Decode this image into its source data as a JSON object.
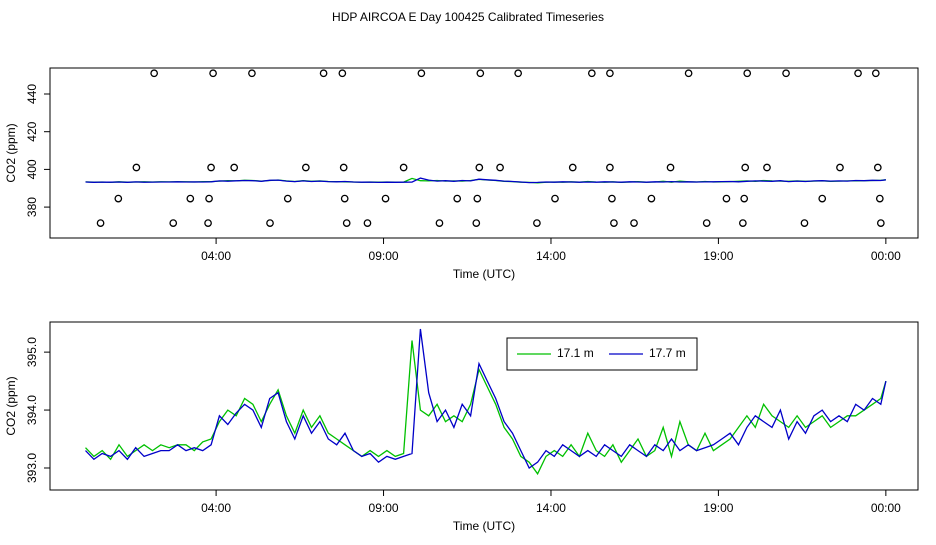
{
  "chart_data": [
    {
      "type": "scatter",
      "title": "HDP AIRCOA E  Day 100425  Calibrated Timeseries",
      "xlabel": "Time (UTC)",
      "ylabel": "CO2 (ppm)",
      "xlim": [
        -0.96,
        24.96
      ],
      "xticks": [
        {
          "value": 4,
          "label": "04:00"
        },
        {
          "value": 9,
          "label": "09:00"
        },
        {
          "value": 14,
          "label": "14:00"
        },
        {
          "value": 19,
          "label": "19:00"
        },
        {
          "value": 24,
          "label": "00:00"
        }
      ],
      "ylim": [
        363.6,
        453.8
      ],
      "yticks": [
        380,
        400,
        420,
        440
      ],
      "color": "#000000",
      "x": [
        2.15,
        3.91,
        5.07,
        7.21,
        7.77,
        10.13,
        11.89,
        13.02,
        15.22,
        15.76,
        18.11,
        19.86,
        21.02,
        23.17,
        23.7,
        1.62,
        3.85,
        4.54,
        6.68,
        7.81,
        9.6,
        11.86,
        12.48,
        14.65,
        15.76,
        17.57,
        19.8,
        20.45,
        22.63,
        23.76,
        1.08,
        3.23,
        3.79,
        6.14,
        7.84,
        9.06,
        11.2,
        11.8,
        14.12,
        15.82,
        17.0,
        19.24,
        19.77,
        22.1,
        23.82,
        0.55,
        2.72,
        3.76,
        5.61,
        7.9,
        8.52,
        10.67,
        11.77,
        13.58,
        15.88,
        16.48,
        18.65,
        19.73,
        21.57,
        23.85
      ],
      "values": [
        451,
        451,
        451,
        451,
        451,
        451,
        451,
        451,
        451,
        451,
        451,
        451,
        451,
        451,
        451,
        401,
        401,
        401,
        401,
        401,
        401,
        401,
        401,
        401,
        401,
        401,
        401,
        401,
        401,
        401,
        384.5,
        384.5,
        384.5,
        384.5,
        384.5,
        384.5,
        384.5,
        384.5,
        384.5,
        384.5,
        384.5,
        384.5,
        384.5,
        384.5,
        384.5,
        371.5,
        371.5,
        371.5,
        371.5,
        371.5,
        371.5,
        371.5,
        371.5,
        371.5,
        371.5,
        371.5,
        371.5,
        371.5,
        371.5,
        371.5
      ]
    },
    {
      "type": "line",
      "xlabel": "Time (UTC)",
      "ylabel": "CO2 (ppm)",
      "xlim": [
        -0.96,
        24.96
      ],
      "xticks": [
        {
          "value": 4,
          "label": "04:00"
        },
        {
          "value": 9,
          "label": "09:00"
        },
        {
          "value": 14,
          "label": "14:00"
        },
        {
          "value": 19,
          "label": "19:00"
        },
        {
          "value": 24,
          "label": "00:00"
        }
      ],
      "ylim": [
        392.62,
        395.52
      ],
      "yticks": [
        {
          "value": 393,
          "label": "393.0"
        },
        {
          "value": 394,
          "label": "394.0"
        },
        {
          "value": 395,
          "label": "395.0"
        }
      ],
      "legend": "top",
      "x": [
        0.1,
        0.35,
        0.6,
        0.85,
        1.1,
        1.35,
        1.6,
        1.85,
        2.1,
        2.35,
        2.6,
        2.85,
        3.1,
        3.35,
        3.6,
        3.85,
        4.1,
        4.35,
        4.6,
        4.85,
        5.1,
        5.35,
        5.6,
        5.85,
        6.1,
        6.35,
        6.6,
        6.85,
        7.1,
        7.35,
        7.6,
        7.85,
        8.1,
        8.35,
        8.6,
        8.85,
        9.1,
        9.35,
        9.6,
        9.85,
        10.1,
        10.35,
        10.6,
        10.85,
        11.1,
        11.35,
        11.6,
        11.85,
        12.1,
        12.35,
        12.6,
        12.85,
        13.1,
        13.35,
        13.6,
        13.85,
        14.1,
        14.35,
        14.6,
        14.85,
        15.1,
        15.35,
        15.6,
        15.85,
        16.1,
        16.35,
        16.6,
        16.85,
        17.1,
        17.35,
        17.6,
        17.85,
        18.1,
        18.35,
        18.6,
        18.85,
        19.1,
        19.35,
        19.6,
        19.85,
        20.1,
        20.35,
        20.6,
        20.85,
        21.1,
        21.35,
        21.6,
        21.85,
        22.1,
        22.35,
        22.6,
        22.85,
        23.1,
        23.35,
        23.6,
        23.85,
        24.0
      ],
      "series": [
        {
          "name": "17.1 m",
          "color": "#00c000",
          "values": [
            393.35,
            393.2,
            393.3,
            393.15,
            393.4,
            393.2,
            393.3,
            393.4,
            393.3,
            393.4,
            393.35,
            393.4,
            393.4,
            393.3,
            393.45,
            393.5,
            393.8,
            394.0,
            393.9,
            394.2,
            394.1,
            393.8,
            394.1,
            394.35,
            393.9,
            393.6,
            394.0,
            393.7,
            393.9,
            393.6,
            393.5,
            393.4,
            393.3,
            393.2,
            393.3,
            393.2,
            393.3,
            393.2,
            393.25,
            395.2,
            394.0,
            393.9,
            394.1,
            393.8,
            393.9,
            393.8,
            394.1,
            394.7,
            394.4,
            394.1,
            393.7,
            393.5,
            393.2,
            393.1,
            392.9,
            393.2,
            393.3,
            393.2,
            393.4,
            393.2,
            393.6,
            393.3,
            393.2,
            393.4,
            393.1,
            393.3,
            393.5,
            393.2,
            393.3,
            393.7,
            393.2,
            393.8,
            393.4,
            393.3,
            393.6,
            393.3,
            393.4,
            393.5,
            393.7,
            393.9,
            393.7,
            394.1,
            393.9,
            393.8,
            393.7,
            393.9,
            393.7,
            393.8,
            393.9,
            393.7,
            393.8,
            393.9,
            393.9,
            394.0,
            394.1,
            394.2,
            394.5
          ]
        },
        {
          "name": "17.7 m",
          "color": "#0000c8",
          "values": [
            393.3,
            393.15,
            393.25,
            393.2,
            393.3,
            393.15,
            393.35,
            393.2,
            393.25,
            393.3,
            393.3,
            393.4,
            393.3,
            393.35,
            393.3,
            393.4,
            393.9,
            393.75,
            393.95,
            394.1,
            394.0,
            393.7,
            394.2,
            394.3,
            393.8,
            393.5,
            393.9,
            393.6,
            393.8,
            393.5,
            393.4,
            393.6,
            393.3,
            393.2,
            393.25,
            393.1,
            393.2,
            393.15,
            393.2,
            393.25,
            395.4,
            394.3,
            393.8,
            394.0,
            393.7,
            394.1,
            393.9,
            394.8,
            394.5,
            394.2,
            393.8,
            393.6,
            393.3,
            393.0,
            393.1,
            393.3,
            393.2,
            393.4,
            393.3,
            393.2,
            393.3,
            393.2,
            393.4,
            393.3,
            393.2,
            393.4,
            393.3,
            393.2,
            393.4,
            393.3,
            393.5,
            393.3,
            393.4,
            393.3,
            393.35,
            393.4,
            393.5,
            393.6,
            393.4,
            393.7,
            393.9,
            393.8,
            393.7,
            394.0,
            393.5,
            393.8,
            393.6,
            393.9,
            394.0,
            393.8,
            393.9,
            393.8,
            394.1,
            394.0,
            394.2,
            394.1,
            394.5
          ]
        }
      ]
    }
  ]
}
